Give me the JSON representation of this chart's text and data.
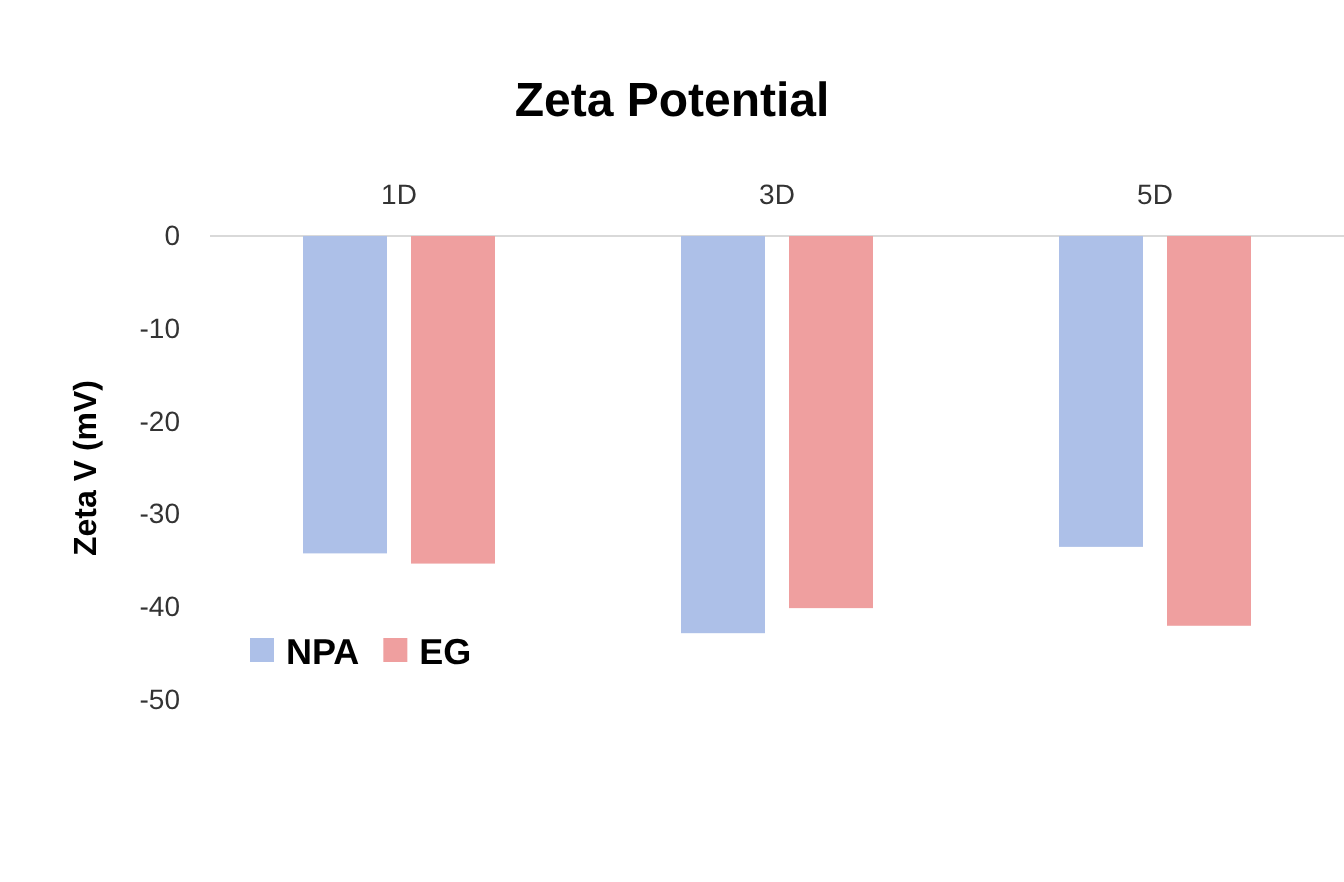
{
  "chart_data": {
    "type": "bar",
    "title": "Zeta Potential",
    "ylabel": "Zeta V (mV)",
    "categories": [
      "1D",
      "3D",
      "5D"
    ],
    "series": [
      {
        "name": "NPA",
        "color": "#adc0e8",
        "values": [
          -34.2,
          -42.8,
          -33.5
        ]
      },
      {
        "name": "EG",
        "color": "#ef9f9f",
        "values": [
          -35.3,
          -40.1,
          -42.0
        ]
      }
    ],
    "ylim": [
      -50,
      0
    ],
    "yticks": [
      0,
      -10,
      -20,
      -30,
      -40,
      -50
    ],
    "grid": false,
    "legend": "bottom left"
  }
}
